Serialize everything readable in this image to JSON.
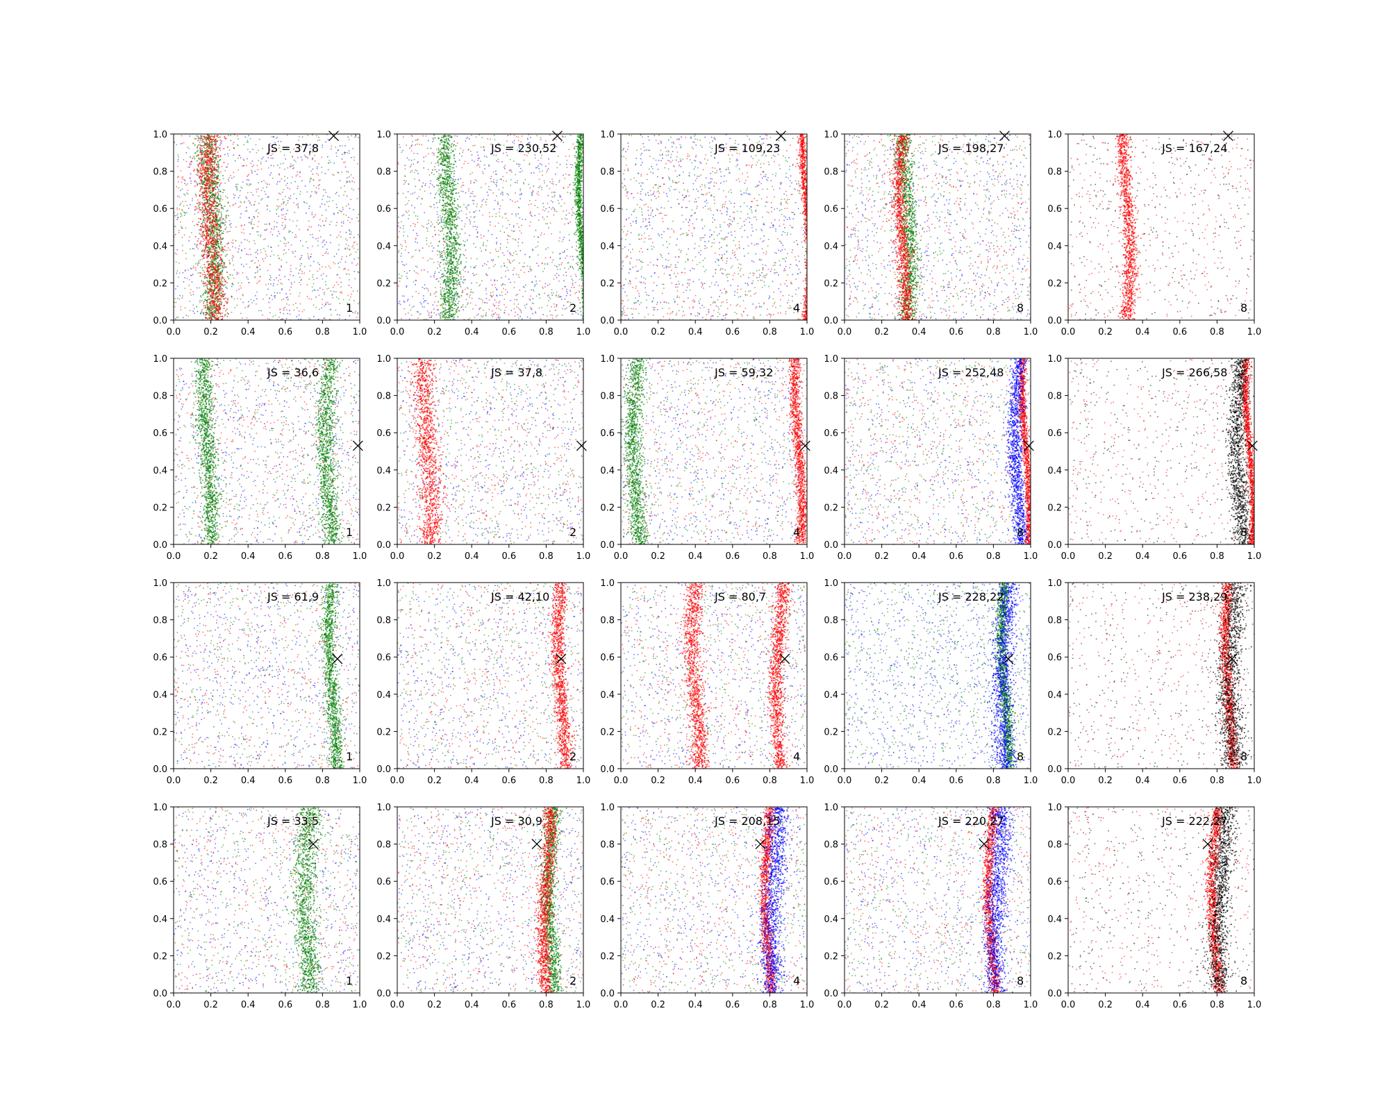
{
  "chart_data": {
    "type": "scatter",
    "layout": "grid 4 rows x 5 columns",
    "xlim": [
      0,
      1
    ],
    "ylim": [
      0,
      1
    ],
    "x_ticks": [
      "0.0",
      "0.2",
      "0.4",
      "0.6",
      "0.8",
      "1.0"
    ],
    "y_ticks": [
      "0.0",
      "0.2",
      "0.4",
      "0.6",
      "0.8",
      "1.0"
    ],
    "colors": {
      "blue": "#0000ff",
      "green": "#008000",
      "red": "#ff0000",
      "black": "#000000"
    },
    "rows": [
      {
        "marker": {
          "x": 0.86,
          "y": 0.99
        },
        "panels": [
          {
            "js_label": "JS = 37,8",
            "index_label": "1",
            "colors": [
              "blue",
              "green",
              "red"
            ],
            "bands": [
              {
                "color": "green",
                "center": 0.2,
                "width": 0.06
              },
              {
                "color": "red",
                "center": 0.2,
                "width": 0.06
              }
            ]
          },
          {
            "js_label": "JS = 230,52",
            "index_label": "2",
            "colors": [
              "blue",
              "green",
              "red"
            ],
            "bands": [
              {
                "color": "green",
                "center": 0.27,
                "width": 0.05
              },
              {
                "color": "green",
                "center": 0.99,
                "width": 0.02
              }
            ]
          },
          {
            "js_label": "JS = 109,23",
            "index_label": "4",
            "colors": [
              "blue",
              "green",
              "red"
            ],
            "bands": [
              {
                "color": "red",
                "center": 0.99,
                "width": 0.02
              }
            ]
          },
          {
            "js_label": "JS = 198,27",
            "index_label": "8",
            "colors": [
              "blue",
              "green",
              "red"
            ],
            "bands": [
              {
                "color": "green",
                "center": 0.33,
                "width": 0.05
              },
              {
                "color": "red",
                "center": 0.31,
                "width": 0.04
              }
            ]
          },
          {
            "js_label": "JS = 167,24",
            "index_label": "8",
            "colors": [
              "black",
              "red"
            ],
            "bands": [
              {
                "color": "red",
                "center": 0.31,
                "width": 0.04
              }
            ]
          }
        ]
      },
      {
        "marker": {
          "x": 0.99,
          "y": 0.53
        },
        "panels": [
          {
            "js_label": "JS = 36,6",
            "index_label": "1",
            "colors": [
              "blue",
              "green",
              "red"
            ],
            "bands": [
              {
                "color": "green",
                "center": 0.18,
                "width": 0.05
              },
              {
                "color": "green",
                "center": 0.83,
                "width": 0.05
              }
            ]
          },
          {
            "js_label": "JS = 37,8",
            "index_label": "2",
            "colors": [
              "blue",
              "green",
              "red"
            ],
            "bands": [
              {
                "color": "red",
                "center": 0.16,
                "width": 0.06
              }
            ]
          },
          {
            "js_label": "JS = 59,32",
            "index_label": "4",
            "colors": [
              "blue",
              "green",
              "red"
            ],
            "bands": [
              {
                "color": "red",
                "center": 0.95,
                "width": 0.03
              },
              {
                "color": "green",
                "center": 0.08,
                "width": 0.05
              }
            ]
          },
          {
            "js_label": "JS = 252,48",
            "index_label": "8",
            "colors": [
              "blue",
              "green",
              "red"
            ],
            "bands": [
              {
                "color": "red",
                "center": 0.97,
                "width": 0.02
              },
              {
                "color": "blue",
                "center": 0.93,
                "width": 0.04
              }
            ]
          },
          {
            "js_label": "JS = 266,58",
            "index_label": "8",
            "colors": [
              "black",
              "red"
            ],
            "bands": [
              {
                "color": "red",
                "center": 0.97,
                "width": 0.02
              },
              {
                "color": "black",
                "center": 0.92,
                "width": 0.05
              }
            ]
          }
        ]
      },
      {
        "marker": {
          "x": 0.88,
          "y": 0.59
        },
        "panels": [
          {
            "js_label": "JS = 61,9",
            "index_label": "1",
            "colors": [
              "blue",
              "green",
              "red"
            ],
            "bands": [
              {
                "color": "green",
                "center": 0.85,
                "width": 0.04
              }
            ]
          },
          {
            "js_label": "JS = 42,10",
            "index_label": "2",
            "colors": [
              "blue",
              "green",
              "red"
            ],
            "bands": [
              {
                "color": "red",
                "center": 0.88,
                "width": 0.04
              }
            ]
          },
          {
            "js_label": "JS = 80,7",
            "index_label": "4",
            "colors": [
              "blue",
              "green",
              "red"
            ],
            "bands": [
              {
                "color": "red",
                "center": 0.4,
                "width": 0.05
              },
              {
                "color": "red",
                "center": 0.85,
                "width": 0.04
              }
            ]
          },
          {
            "js_label": "JS = 228,22",
            "index_label": "8",
            "colors": [
              "blue",
              "green"
            ],
            "bands": [
              {
                "color": "green",
                "center": 0.86,
                "width": 0.03
              },
              {
                "color": "blue",
                "center": 0.86,
                "width": 0.06
              }
            ]
          },
          {
            "js_label": "JS = 238,29",
            "index_label": "8",
            "colors": [
              "black",
              "red"
            ],
            "bands": [
              {
                "color": "red",
                "center": 0.86,
                "width": 0.03
              },
              {
                "color": "black",
                "center": 0.88,
                "width": 0.07
              }
            ]
          }
        ]
      },
      {
        "marker": {
          "x": 0.75,
          "y": 0.8
        },
        "panels": [
          {
            "js_label": "JS = 33,5",
            "index_label": "1",
            "colors": [
              "blue",
              "green",
              "red"
            ],
            "bands": [
              {
                "color": "green",
                "center": 0.72,
                "width": 0.06
              }
            ]
          },
          {
            "js_label": "JS = 30,9",
            "index_label": "2",
            "colors": [
              "blue",
              "green",
              "red"
            ],
            "bands": [
              {
                "color": "green",
                "center": 0.83,
                "width": 0.04
              },
              {
                "color": "red",
                "center": 0.8,
                "width": 0.04
              }
            ]
          },
          {
            "js_label": "JS = 208,15",
            "index_label": "4",
            "colors": [
              "blue",
              "green",
              "red"
            ],
            "bands": [
              {
                "color": "red",
                "center": 0.79,
                "width": 0.03
              },
              {
                "color": "blue",
                "center": 0.82,
                "width": 0.06
              }
            ]
          },
          {
            "js_label": "JS = 220,27",
            "index_label": "8",
            "colors": [
              "blue",
              "green",
              "red"
            ],
            "bands": [
              {
                "color": "red",
                "center": 0.79,
                "width": 0.03
              },
              {
                "color": "blue",
                "center": 0.82,
                "width": 0.06
              }
            ]
          },
          {
            "js_label": "JS = 222,27",
            "index_label": "8",
            "colors": [
              "black",
              "red"
            ],
            "bands": [
              {
                "color": "red",
                "center": 0.79,
                "width": 0.03
              },
              {
                "color": "black",
                "center": 0.82,
                "width": 0.06
              }
            ]
          }
        ]
      }
    ]
  }
}
